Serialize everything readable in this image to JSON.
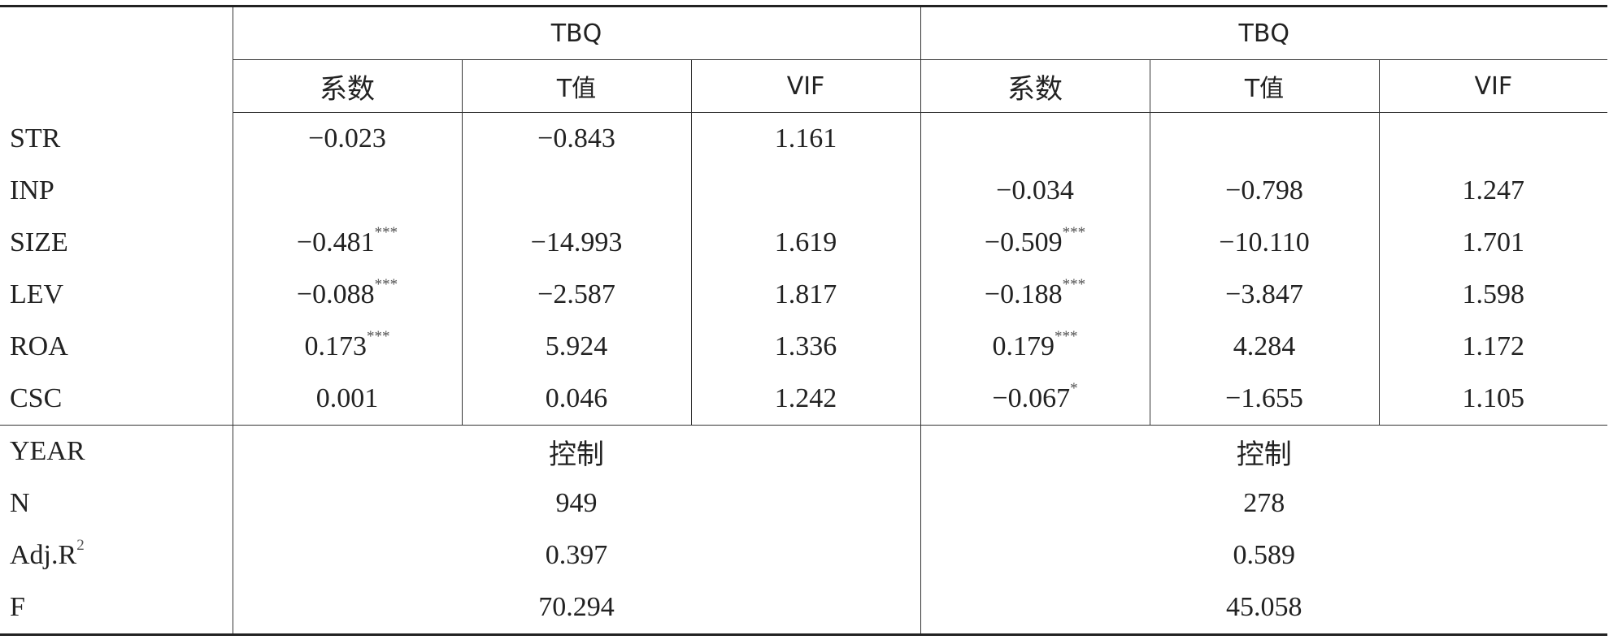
{
  "table": {
    "groups": [
      "TBQ",
      "TBQ"
    ],
    "subheaders": [
      "系数",
      "T值",
      "VIF",
      "系数",
      "T值",
      "VIF"
    ],
    "rows": [
      {
        "label": "STR",
        "cells": [
          "−0.023",
          "−0.843",
          "1.161",
          null,
          null,
          null
        ]
      },
      {
        "label": "INP",
        "cells": [
          null,
          null,
          null,
          "−0.034",
          "−0.798",
          "1.247"
        ]
      },
      {
        "label": "SIZE",
        "cells": [
          {
            "text": "−0.481",
            "sup": "***"
          },
          "−14.993",
          "1.619",
          {
            "text": "−0.509",
            "sup": "***"
          },
          "−10.110",
          "1.701"
        ]
      },
      {
        "label": "LEV",
        "cells": [
          {
            "text": "−0.088",
            "sup": "***"
          },
          "−2.587",
          "1.817",
          {
            "text": "−0.188",
            "sup": "***"
          },
          "−3.847",
          "1.598"
        ]
      },
      {
        "label": "ROA",
        "cells": [
          {
            "text": "0.173",
            "sup": "***"
          },
          "5.924",
          "1.336",
          {
            "text": "0.179",
            "sup": "***"
          },
          "4.284",
          "1.172"
        ]
      },
      {
        "label": "CSC",
        "cells": [
          "0.001",
          "0.046",
          "1.242",
          {
            "text": "−0.067",
            "sup": "*"
          },
          "−1.655",
          "1.105"
        ]
      }
    ],
    "summary": [
      {
        "label": "YEAR",
        "cells": [
          "控制",
          "控制"
        ]
      },
      {
        "label": "N",
        "cells": [
          "949",
          "278"
        ]
      },
      {
        "label": {
          "text": "Adj.R",
          "sup": "2"
        },
        "cells": [
          "0.397",
          "0.589"
        ]
      },
      {
        "label": "F",
        "cells": [
          "70.294",
          "45.058"
        ]
      }
    ]
  }
}
